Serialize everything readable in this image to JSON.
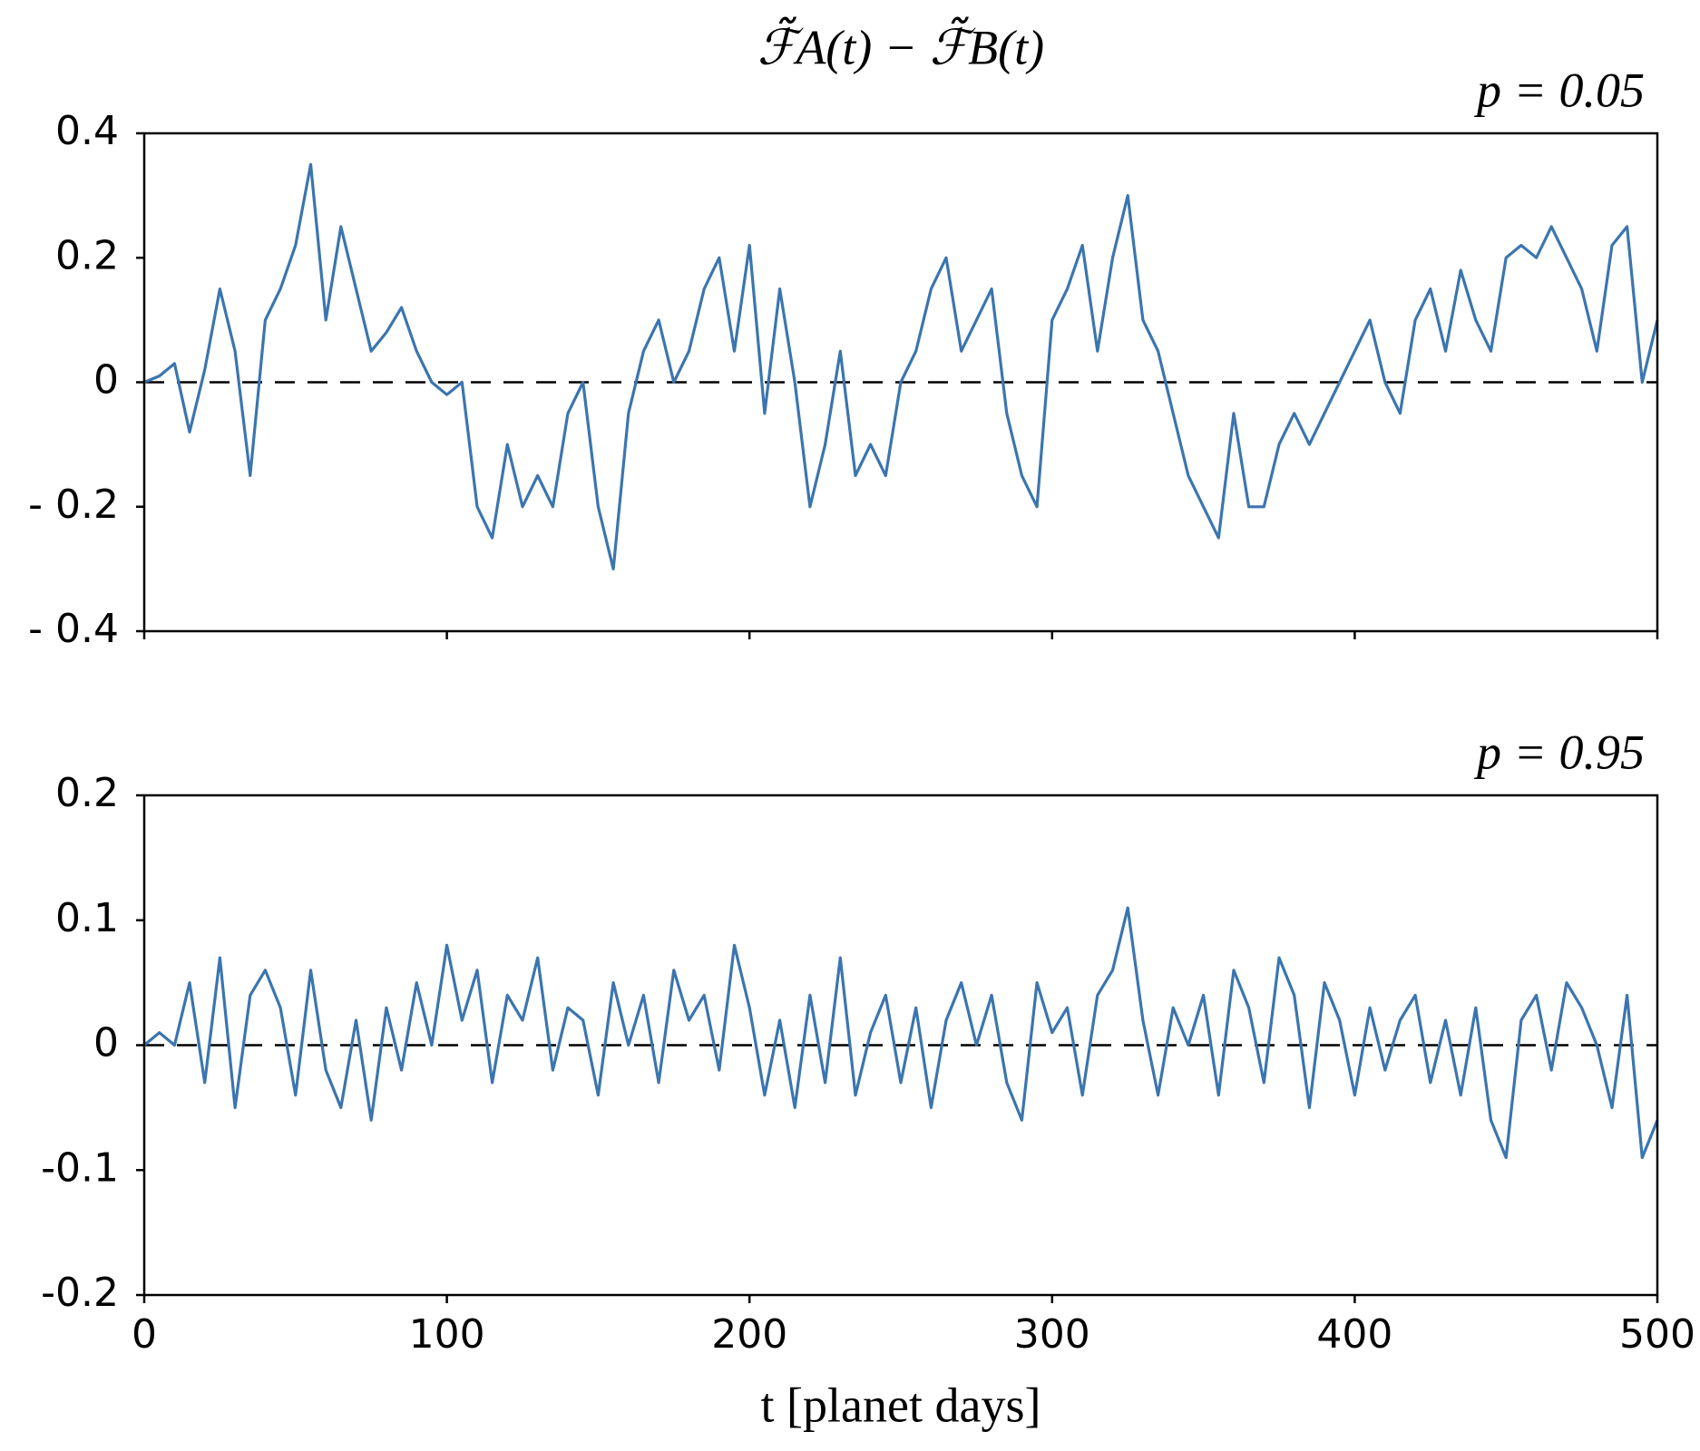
{
  "chart_data": [
    {
      "type": "line",
      "title": "ℱ̃A(t) − ℱ̃B(t)",
      "annotation": "p = 0.05",
      "color": "#3b75af",
      "hline": 0,
      "x": [
        0,
        5,
        10,
        15,
        20,
        25,
        30,
        35,
        40,
        45,
        50,
        55,
        60,
        65,
        70,
        75,
        80,
        85,
        90,
        95,
        100,
        105,
        110,
        115,
        120,
        125,
        130,
        135,
        140,
        145,
        150,
        155,
        160,
        165,
        170,
        175,
        180,
        185,
        190,
        195,
        200,
        205,
        210,
        215,
        220,
        225,
        230,
        235,
        240,
        245,
        250,
        255,
        260,
        265,
        270,
        275,
        280,
        285,
        290,
        295,
        300,
        305,
        310,
        315,
        320,
        325,
        330,
        335,
        340,
        345,
        350,
        355,
        360,
        365,
        370,
        375,
        380,
        385,
        390,
        395,
        400,
        405,
        410,
        415,
        420,
        425,
        430,
        435,
        440,
        445,
        450,
        455,
        460,
        465,
        470,
        475,
        480,
        485,
        490,
        495,
        500
      ],
      "values": [
        0.0,
        0.01,
        0.03,
        -0.08,
        0.02,
        0.15,
        0.05,
        -0.15,
        0.1,
        0.15,
        0.22,
        0.35,
        0.1,
        0.25,
        0.15,
        0.05,
        0.08,
        0.12,
        0.05,
        0.0,
        -0.02,
        0.0,
        -0.2,
        -0.25,
        -0.1,
        -0.2,
        -0.15,
        -0.2,
        -0.05,
        0.0,
        -0.2,
        -0.3,
        -0.05,
        0.05,
        0.1,
        0.0,
        0.05,
        0.15,
        0.2,
        0.05,
        0.22,
        -0.05,
        0.15,
        0.0,
        -0.2,
        -0.1,
        0.05,
        -0.15,
        -0.1,
        -0.15,
        0.0,
        0.05,
        0.15,
        0.2,
        0.05,
        0.1,
        0.15,
        -0.05,
        -0.15,
        -0.2,
        0.1,
        0.15,
        0.22,
        0.05,
        0.2,
        0.3,
        0.1,
        0.05,
        -0.05,
        -0.15,
        -0.2,
        -0.25,
        -0.05,
        -0.2,
        -0.2,
        -0.1,
        -0.05,
        -0.1,
        -0.05,
        0.0,
        0.05,
        0.1,
        0.0,
        -0.05,
        0.1,
        0.15,
        0.05,
        0.18,
        0.1,
        0.05,
        0.2,
        0.22,
        0.2,
        0.25,
        0.2,
        0.15,
        0.05,
        0.22,
        0.25,
        0.0,
        0.1
      ],
      "xlim": [
        0,
        500
      ],
      "xticks": [
        0,
        100,
        200,
        300,
        400,
        500
      ],
      "ylim": [
        -0.4,
        0.4
      ],
      "yticks": [
        {
          "value": -0.4,
          "label": "- 0.4"
        },
        {
          "value": -0.2,
          "label": "- 0.2"
        },
        0,
        0.2,
        0.4
      ]
    },
    {
      "type": "line",
      "annotation": "p = 0.95",
      "xlabel": "t [planet days]",
      "color": "#3b75af",
      "hline": 0,
      "x": [
        0,
        5,
        10,
        15,
        20,
        25,
        30,
        35,
        40,
        45,
        50,
        55,
        60,
        65,
        70,
        75,
        80,
        85,
        90,
        95,
        100,
        105,
        110,
        115,
        120,
        125,
        130,
        135,
        140,
        145,
        150,
        155,
        160,
        165,
        170,
        175,
        180,
        185,
        190,
        195,
        200,
        205,
        210,
        215,
        220,
        225,
        230,
        235,
        240,
        245,
        250,
        255,
        260,
        265,
        270,
        275,
        280,
        285,
        290,
        295,
        300,
        305,
        310,
        315,
        320,
        325,
        330,
        335,
        340,
        345,
        350,
        355,
        360,
        365,
        370,
        375,
        380,
        385,
        390,
        395,
        400,
        405,
        410,
        415,
        420,
        425,
        430,
        435,
        440,
        445,
        450,
        455,
        460,
        465,
        470,
        475,
        480,
        485,
        490,
        495,
        500
      ],
      "values": [
        0.0,
        0.01,
        0.0,
        0.05,
        -0.03,
        0.07,
        -0.05,
        0.04,
        0.06,
        0.03,
        -0.04,
        0.06,
        -0.02,
        -0.05,
        0.02,
        -0.06,
        0.03,
        -0.02,
        0.05,
        0.0,
        0.08,
        0.02,
        0.06,
        -0.03,
        0.04,
        0.02,
        0.07,
        -0.02,
        0.03,
        0.02,
        -0.04,
        0.05,
        0.0,
        0.04,
        -0.03,
        0.06,
        0.02,
        0.04,
        -0.02,
        0.08,
        0.03,
        -0.04,
        0.02,
        -0.05,
        0.04,
        -0.03,
        0.07,
        -0.04,
        0.01,
        0.04,
        -0.03,
        0.03,
        -0.05,
        0.02,
        0.05,
        0.0,
        0.04,
        -0.03,
        -0.06,
        0.05,
        0.01,
        0.03,
        -0.04,
        0.04,
        0.06,
        0.11,
        0.02,
        -0.04,
        0.03,
        0.0,
        0.04,
        -0.04,
        0.06,
        0.03,
        -0.03,
        0.07,
        0.04,
        -0.05,
        0.05,
        0.02,
        -0.04,
        0.03,
        -0.02,
        0.02,
        0.04,
        -0.03,
        0.02,
        -0.04,
        0.03,
        -0.06,
        -0.09,
        0.02,
        0.04,
        -0.02,
        0.05,
        0.03,
        0.0,
        -0.05,
        0.04,
        -0.09,
        -0.06
      ],
      "xlim": [
        0,
        500
      ],
      "xticks": [
        0,
        100,
        200,
        300,
        400,
        500
      ],
      "ylim": [
        -0.2,
        0.2
      ],
      "yticks": [
        -0.2,
        -0.1,
        0,
        0.1,
        0.2
      ]
    }
  ]
}
